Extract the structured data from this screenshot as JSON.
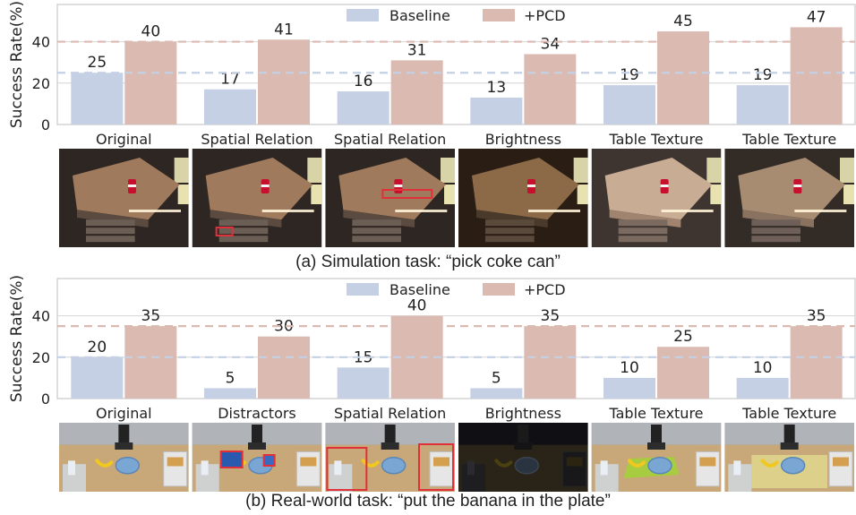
{
  "chart_data": [
    {
      "type": "bar",
      "ylabel": "Success Rate(%)",
      "ylim": [
        0,
        58
      ],
      "yticks": [
        "0",
        "20",
        "40"
      ],
      "grid": true,
      "legend_placement": "top-center",
      "categories": [
        "Original",
        "Spatial Relation",
        "Spatial Relation",
        "Brightness",
        "Table Texture",
        "Table Texture"
      ],
      "series": [
        {
          "name": "Baseline",
          "color": "#c5d0e4",
          "values": [
            25,
            17,
            16,
            13,
            19,
            19
          ],
          "labels": [
            "25",
            "17",
            "16",
            "13",
            "19",
            "19"
          ]
        },
        {
          "name": "+PCD",
          "color": "#dbbab2",
          "values": [
            40,
            41,
            31,
            34,
            45,
            47
          ],
          "labels": [
            "40",
            "41",
            "31",
            "34",
            "45",
            "47"
          ]
        }
      ],
      "reference_lines": [
        {
          "series": "Baseline",
          "value": 25,
          "style": "dashed"
        },
        {
          "series": "+PCD",
          "value": 40,
          "style": "dashed"
        }
      ],
      "caption": "(a) Simulation task: “pick coke can”",
      "thumbnails": [
        {
          "scene": "sim",
          "variant": "original"
        },
        {
          "scene": "sim",
          "variant": "spatial-drawer"
        },
        {
          "scene": "sim",
          "variant": "spatial-edge"
        },
        {
          "scene": "sim",
          "variant": "bright"
        },
        {
          "scene": "sim",
          "variant": "texture1"
        },
        {
          "scene": "sim",
          "variant": "texture2"
        }
      ]
    },
    {
      "type": "bar",
      "ylabel": "Success Rate(%)",
      "ylim": [
        0,
        58
      ],
      "yticks": [
        "0",
        "20",
        "40"
      ],
      "grid": true,
      "legend_placement": "top-center",
      "categories": [
        "Original",
        "Distractors",
        "Spatial Relation",
        "Brightness",
        "Table Texture",
        "Table Texture"
      ],
      "series": [
        {
          "name": "Baseline",
          "color": "#c5d0e4",
          "values": [
            20,
            5,
            15,
            5,
            10,
            10
          ],
          "labels": [
            "20",
            "5",
            "15",
            "5",
            "10",
            "10"
          ]
        },
        {
          "name": "+PCD",
          "color": "#dbbab2",
          "values": [
            35,
            30,
            40,
            35,
            25,
            35
          ],
          "labels": [
            "35",
            "30",
            "40",
            "35",
            "25",
            "35"
          ]
        }
      ],
      "reference_lines": [
        {
          "series": "Baseline",
          "value": 20,
          "style": "dashed"
        },
        {
          "series": "+PCD",
          "value": 35,
          "style": "dashed"
        }
      ],
      "caption": "(b) Real-world task: “put the banana in the plate”",
      "thumbnails": [
        {
          "scene": "real",
          "variant": "original"
        },
        {
          "scene": "real",
          "variant": "distractors"
        },
        {
          "scene": "real",
          "variant": "spatial"
        },
        {
          "scene": "real",
          "variant": "dark"
        },
        {
          "scene": "real",
          "variant": "green-mat"
        },
        {
          "scene": "real",
          "variant": "yellow-mat"
        }
      ]
    }
  ]
}
